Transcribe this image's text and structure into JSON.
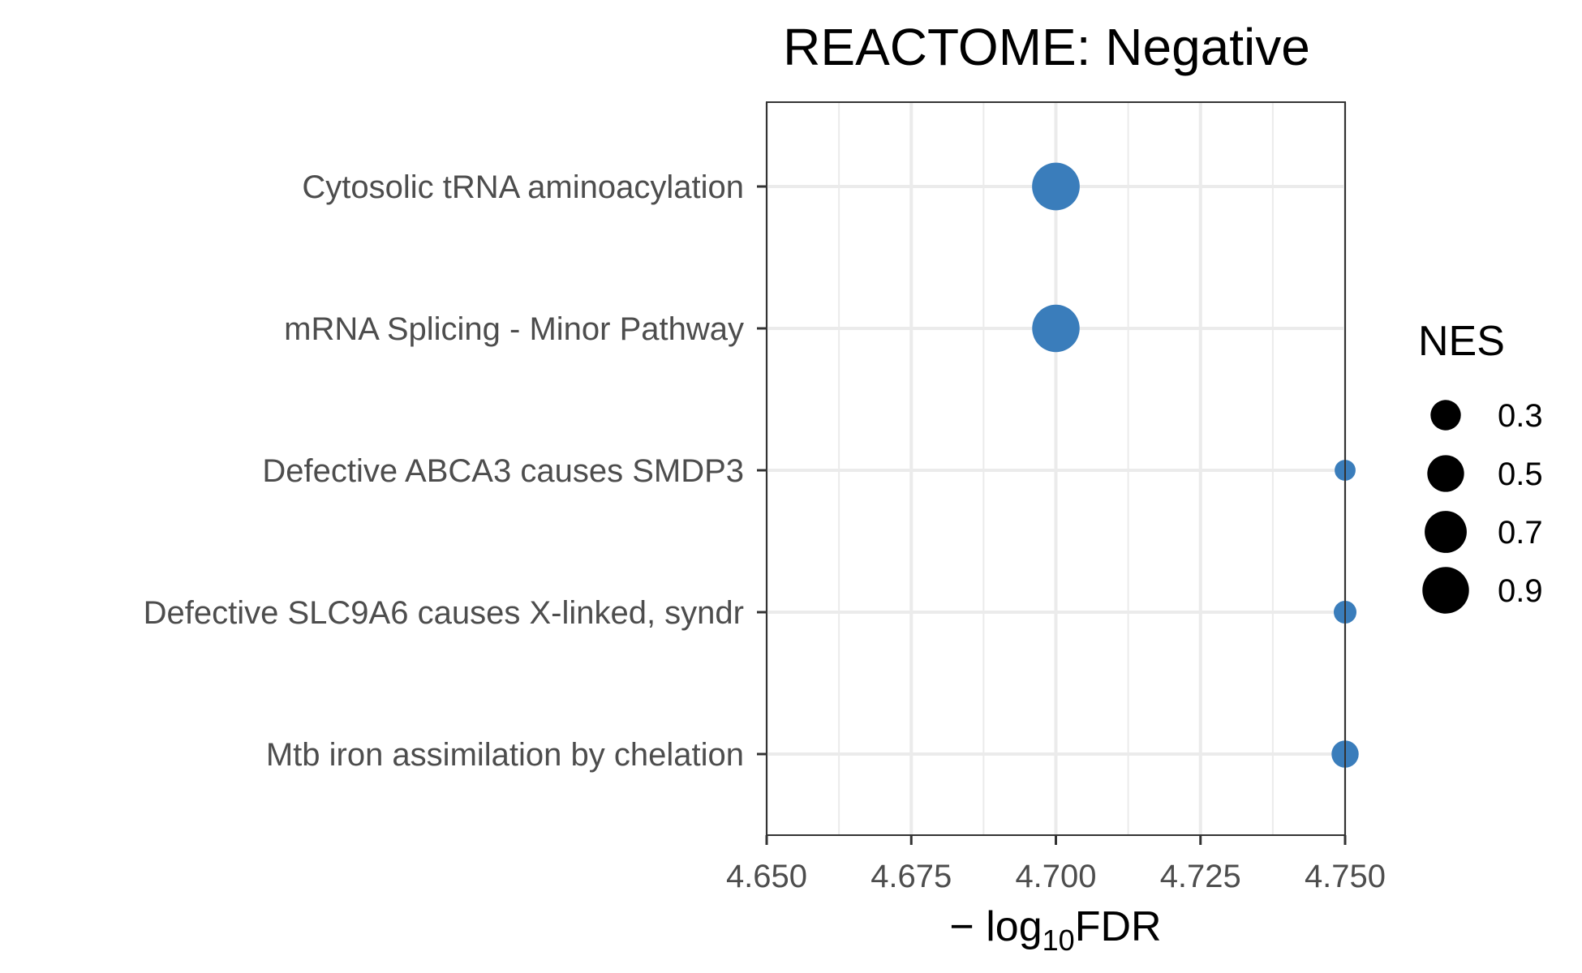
{
  "chart_data": {
    "type": "scatter",
    "title": "REACTOME: Negative",
    "xlabel": {
      "prefix": "− log",
      "subscript": "10",
      "suffix": "FDR"
    },
    "xlim": [
      4.65,
      4.75
    ],
    "xticks": [
      "4.650",
      "4.675",
      "4.700",
      "4.725",
      "4.750"
    ],
    "xtick_values": [
      4.65,
      4.675,
      4.7,
      4.725,
      4.75
    ],
    "categories": [
      "Cytosolic tRNA aminoacylation",
      "mRNA Splicing - Minor Pathway",
      "Defective ABCA3 causes SMDP3",
      "Defective SLC9A6 causes  X-linked, syndr",
      "Mtb iron assimilation by chelation"
    ],
    "points": [
      {
        "category": "Cytosolic tRNA aminoacylation",
        "x": 4.7,
        "nes": 0.95
      },
      {
        "category": "mRNA Splicing - Minor Pathway",
        "x": 4.7,
        "nes": 0.94
      },
      {
        "category": "Defective ABCA3 causes SMDP3",
        "x": 4.75,
        "nes": 0.1
      },
      {
        "category": "Defective SLC9A6 causes  X-linked, syndr",
        "x": 4.75,
        "nes": 0.13
      },
      {
        "category": "Mtb iron assimilation by chelation",
        "x": 4.75,
        "nes": 0.22
      }
    ],
    "size_legend": {
      "title": "NES",
      "labels": [
        "0.3",
        "0.5",
        "0.7",
        "0.9"
      ],
      "values": [
        0.3,
        0.5,
        0.7,
        0.9
      ]
    },
    "point_color": "#3A7DBB",
    "grid": true,
    "legend_position": "right"
  }
}
